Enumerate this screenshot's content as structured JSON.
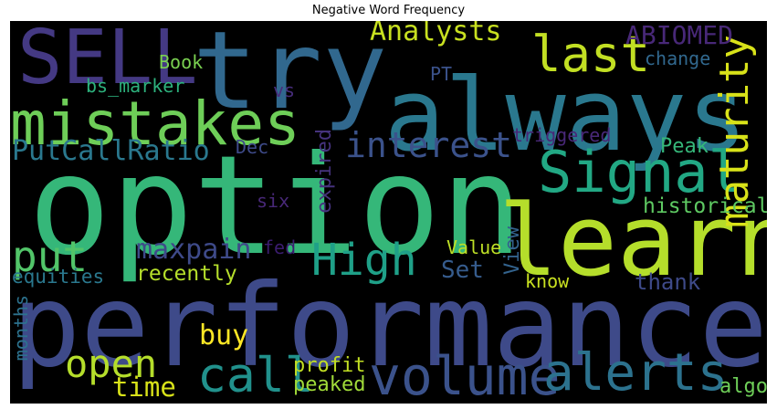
{
  "chart_data": {
    "type": "wordcloud",
    "title": "Negative Word Frequency",
    "background": "#000000",
    "colormap": "viridis",
    "words": [
      {
        "text": "option",
        "color": "#35b779"
      },
      {
        "text": "performance",
        "color": "#3e4a89"
      },
      {
        "text": "always",
        "color": "#2a788e"
      },
      {
        "text": "try",
        "color": "#31688e"
      },
      {
        "text": "learn",
        "color": "#b5de2b"
      },
      {
        "text": "mistakes",
        "color": "#6ece58"
      },
      {
        "text": "Signal",
        "color": "#22a884"
      },
      {
        "text": "SELL",
        "color": "#443983"
      },
      {
        "text": "volume",
        "color": "#3b528b"
      },
      {
        "text": "alerts",
        "color": "#2c728e"
      },
      {
        "text": "High",
        "color": "#1fa088"
      },
      {
        "text": "call",
        "color": "#21918c"
      },
      {
        "text": "last",
        "color": "#c2df23"
      },
      {
        "text": "maturity",
        "color": "#d8e219"
      },
      {
        "text": "interest",
        "color": "#3b528b"
      },
      {
        "text": "put",
        "color": "#52c569"
      },
      {
        "text": "open",
        "color": "#b5de2b"
      },
      {
        "text": "PutCallRatio",
        "color": "#2a788e"
      },
      {
        "text": "maxpain",
        "color": "#3e4a89"
      },
      {
        "text": "Analysts",
        "color": "#c8e020"
      },
      {
        "text": "ABIOMED",
        "color": "#482878"
      },
      {
        "text": "buy",
        "color": "#fde725"
      },
      {
        "text": "time",
        "color": "#d8e219"
      },
      {
        "text": "historical",
        "color": "#5ec962"
      },
      {
        "text": "recently",
        "color": "#b5de2b"
      },
      {
        "text": "equities",
        "color": "#2a788e"
      },
      {
        "text": "months",
        "color": "#2c728e"
      },
      {
        "text": "Set",
        "color": "#365c8d"
      },
      {
        "text": "View",
        "color": "#33638d"
      },
      {
        "text": "Value",
        "color": "#bddf26"
      },
      {
        "text": "profit",
        "color": "#c2df23"
      },
      {
        "text": "peaked",
        "color": "#a0da39"
      },
      {
        "text": "algo",
        "color": "#6ece58"
      },
      {
        "text": "thank",
        "color": "#3e4a89"
      },
      {
        "text": "know",
        "color": "#c8e020"
      },
      {
        "text": "Peak",
        "color": "#35b779"
      },
      {
        "text": "expired",
        "color": "#46337e"
      },
      {
        "text": "six",
        "color": "#482878"
      },
      {
        "text": "fed",
        "color": "#3b1c6f"
      },
      {
        "text": "Dec",
        "color": "#3e4a89"
      },
      {
        "text": "triggered",
        "color": "#482878"
      },
      {
        "text": "PT",
        "color": "#3b528b"
      },
      {
        "text": "change",
        "color": "#31688e"
      },
      {
        "text": "Book",
        "color": "#7ad151"
      },
      {
        "text": "bs_marker",
        "color": "#2db27d"
      },
      {
        "text": "vs",
        "color": "#472d7b"
      }
    ]
  }
}
